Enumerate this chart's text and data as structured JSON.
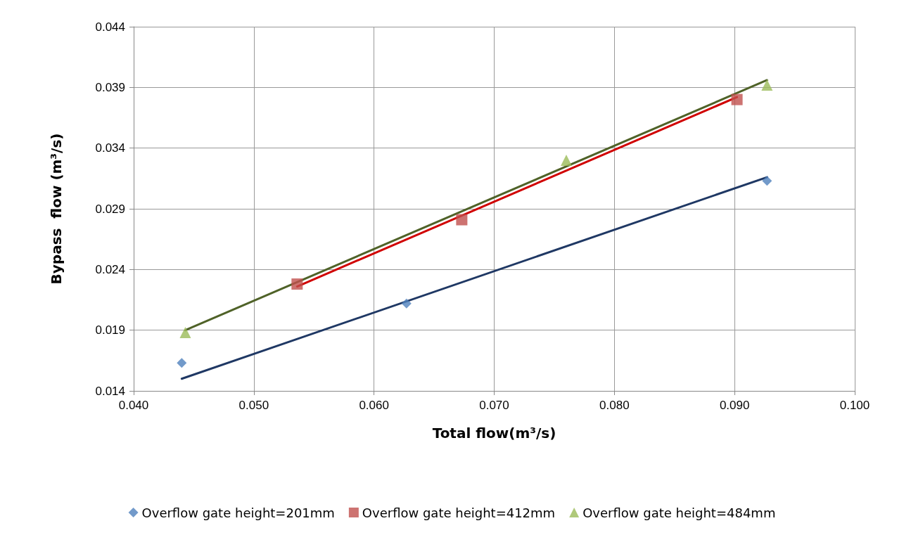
{
  "chart_data": {
    "type": "scatter",
    "xlabel": "Total flow(m³/s)",
    "ylabel": "Bypass  flow (m³/s)",
    "xlim": [
      0.04,
      0.1
    ],
    "xticks": [
      {
        "value": 0.04,
        "label": "0.040"
      },
      {
        "value": 0.05,
        "label": "0.050"
      },
      {
        "value": 0.06,
        "label": "0.060"
      },
      {
        "value": 0.07,
        "label": "0.070"
      },
      {
        "value": 0.08,
        "label": "0.080"
      },
      {
        "value": 0.09,
        "label": "0.090"
      },
      {
        "value": 0.1,
        "label": "0.100"
      }
    ],
    "ylim": [
      0.014,
      0.044
    ],
    "yticks": [
      0.014,
      0.019,
      0.024,
      0.029,
      0.034,
      0.039,
      0.044
    ],
    "grid": true,
    "legend": "bottom",
    "series": [
      {
        "name": "Overflow gate height=201mm",
        "color": "#4f81bd",
        "marker": "diamond",
        "x": [
          0.044,
          0.0627,
          0.0927
        ],
        "values": [
          0.0163,
          0.0212,
          0.0313
        ]
      },
      {
        "name": "Overflow gate height=412mm",
        "color": "#c0504d",
        "marker": "square",
        "x": [
          0.0536,
          0.0673,
          0.0902
        ],
        "values": [
          0.0228,
          0.0281,
          0.038
        ]
      },
      {
        "name": "Overflow gate height=484mm",
        "color": "#9bbb59",
        "marker": "triangle",
        "x": [
          0.0443,
          0.076,
          0.0927
        ],
        "values": [
          0.0188,
          0.033,
          0.0392
        ]
      },
      {
        "type": "line",
        "color": "#1f3864",
        "marker": "none",
        "line_style": "solid",
        "x": [
          0.044,
          0.0927
        ],
        "values": [
          0.015,
          0.0316
        ]
      },
      {
        "type": "line",
        "color": "#d00000",
        "marker": "none",
        "line_style": "solid",
        "x": [
          0.0536,
          0.0902
        ],
        "values": [
          0.0226,
          0.0382
        ]
      },
      {
        "type": "line",
        "color": "#4f6228",
        "marker": "none",
        "line_style": "solid",
        "x": [
          0.0443,
          0.0927
        ],
        "values": [
          0.019,
          0.0396
        ]
      }
    ]
  }
}
